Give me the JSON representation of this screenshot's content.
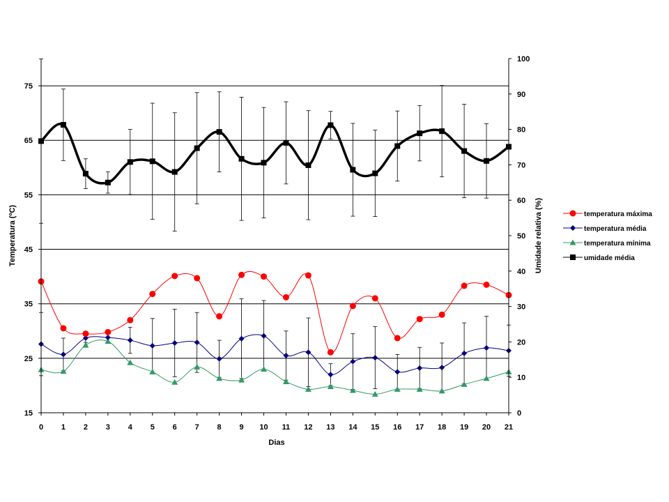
{
  "chart_data": {
    "type": "line",
    "x": [
      0,
      1,
      2,
      3,
      4,
      5,
      6,
      7,
      8,
      9,
      10,
      11,
      12,
      13,
      14,
      15,
      16,
      17,
      18,
      19,
      20,
      21
    ],
    "xlabel": "Dias",
    "ylabel_left": "Temperatura (ºC)",
    "ylabel_right": "Umidade relativa (%)",
    "ylim_left": [
      15,
      80
    ],
    "ylim_right": [
      0,
      100
    ],
    "yticks_left": [
      15,
      25,
      35,
      45,
      55,
      65,
      75
    ],
    "yticks_right": [
      0,
      10,
      20,
      30,
      40,
      50,
      60,
      70,
      80,
      90,
      100
    ],
    "grid": "horizontal (left axis)",
    "legend_position": "right",
    "series": [
      {
        "name": "temperatura máxima",
        "axis": "left",
        "color": "#ff0000",
        "marker": "circle",
        "smooth": true,
        "values": [
          39.1,
          30.5,
          29.5,
          29.8,
          32.0,
          36.8,
          40.1,
          39.7,
          32.7,
          40.3,
          40.0,
          36.2,
          40.2,
          26.1,
          34.6,
          36.0,
          28.7,
          32.2,
          33.0,
          38.3,
          38.5,
          36.6
        ]
      },
      {
        "name": "temperatura média",
        "axis": "left",
        "color": "#000080",
        "marker": "diamond",
        "smooth": true,
        "values": [
          27.6,
          25.7,
          28.7,
          28.8,
          28.3,
          27.3,
          27.8,
          27.9,
          24.9,
          28.6,
          29.1,
          25.5,
          26.1,
          22.0,
          24.4,
          25.1,
          22.5,
          23.2,
          23.3,
          25.9,
          26.9,
          26.4
        ],
        "error": [
          5.8,
          3.0,
          0.8,
          1.0,
          2.4,
          5.0,
          6.2,
          5.5,
          3.4,
          7.3,
          6.5,
          4.5,
          6.3,
          2.0,
          5.1,
          5.7,
          3.2,
          3.8,
          4.5,
          5.6,
          5.8,
          4.7
        ]
      },
      {
        "name": "temperatura mínima",
        "axis": "left",
        "color": "#339966",
        "marker": "triangle",
        "smooth": true,
        "values": [
          22.9,
          22.6,
          27.4,
          28.1,
          24.2,
          22.5,
          20.6,
          23.4,
          21.3,
          21.0,
          23.0,
          20.7,
          19.3,
          19.8,
          19.1,
          18.4,
          19.3,
          19.3,
          19.0,
          20.2,
          21.3,
          22.5
        ]
      },
      {
        "name": "umidade média",
        "axis": "right",
        "color": "#000000",
        "marker": "square",
        "smooth": true,
        "values": [
          76.7,
          81.3,
          67.5,
          65.0,
          70.8,
          71.0,
          68.0,
          74.7,
          79.3,
          71.7,
          70.6,
          76.2,
          69.9,
          81.2,
          68.6,
          67.6,
          75.3,
          78.9,
          79.5,
          73.9,
          71.1,
          75.1
        ],
        "error": [
          23.2,
          10.1,
          4.2,
          3.0,
          9.2,
          16.4,
          16.7,
          15.7,
          11.3,
          17.4,
          15.6,
          11.6,
          15.4,
          3.9,
          13.1,
          12.2,
          9.9,
          7.8,
          12.9,
          13.2,
          10.5,
          0
        ]
      }
    ]
  }
}
